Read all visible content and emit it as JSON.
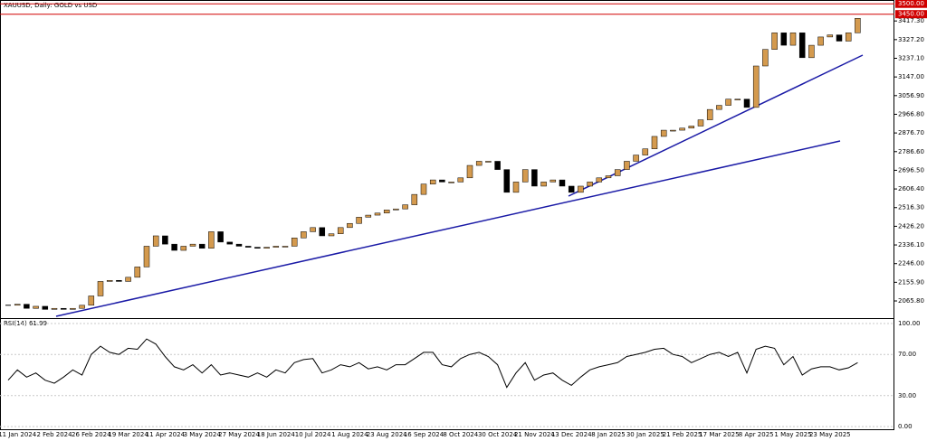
{
  "chart_data": [
    {
      "type": "candlestick",
      "title": "XAUUSD, Daily:  GOLD vs USD",
      "up_color": "#d49a4e",
      "down_color": "#000000",
      "categories": [
        null,
        "11 Jan 2024",
        null,
        null,
        null,
        "2 Feb 2024",
        null,
        null,
        null,
        "26 Feb 2024",
        null,
        null,
        null,
        "19 Mar 2024",
        null,
        null,
        null,
        "11 Apr 2024",
        null,
        null,
        null,
        "3 May 2024",
        null,
        null,
        null,
        "27 May 2024",
        null,
        null,
        null,
        "18 Jun 2024",
        null,
        null,
        null,
        "10 Jul 2024",
        null,
        null,
        null,
        "1 Aug 2024",
        null,
        null,
        null,
        "23 Aug 2024",
        null,
        null,
        null,
        "16 Sep 2024",
        null,
        null,
        null,
        "8 Oct 2024",
        null,
        null,
        null,
        "30 Oct 2024",
        null,
        null,
        null,
        "21 Nov 2024",
        null,
        null,
        null,
        "13 Dec 2024",
        null,
        null,
        null,
        "8 Jan 2025",
        null,
        null,
        null,
        "30 Jan 2025",
        null,
        null,
        null,
        "21 Feb 2025",
        null,
        null,
        null,
        "17 Mar 2025",
        null,
        null,
        null,
        "8 Apr 2025",
        null,
        null,
        null,
        "1 May 2025",
        null,
        null,
        null,
        "23 May 2025",
        null,
        null,
        null
      ],
      "close": [
        2045,
        2050,
        2030,
        2040,
        2025,
        2030,
        2025,
        2030,
        2045,
        2090,
        2160,
        2165,
        2160,
        2180,
        2230,
        2330,
        2380,
        2340,
        2310,
        2330,
        2340,
        2320,
        2400,
        2350,
        2340,
        2330,
        2325,
        2320,
        2325,
        2330,
        2330,
        2370,
        2400,
        2420,
        2380,
        2390,
        2420,
        2440,
        2470,
        2480,
        2490,
        2505,
        2510,
        2530,
        2580,
        2630,
        2650,
        2640,
        2640,
        2660,
        2720,
        2740,
        2740,
        2700,
        2590,
        2640,
        2700,
        2620,
        2640,
        2650,
        2620,
        2590,
        2620,
        2640,
        2660,
        2670,
        2700,
        2740,
        2770,
        2800,
        2860,
        2890,
        2890,
        2900,
        2910,
        2940,
        2990,
        3010,
        3040,
        3040,
        3000,
        3200,
        3280,
        3360,
        3300,
        3360,
        3240,
        3300,
        3340,
        3350,
        3320,
        3360,
        3430
      ],
      "ylim": [
        1983,
        3501
      ],
      "yticks": [
        {
          "value": 2065.8,
          "label": "2065.80"
        },
        {
          "value": 2155.9,
          "label": "2155.90"
        },
        {
          "value": 2246,
          "label": "2246.00"
        },
        {
          "value": 2336.1,
          "label": "2336.10"
        },
        {
          "value": 2426.2,
          "label": "2426.20"
        },
        {
          "value": 2516.3,
          "label": "2516.30"
        },
        {
          "value": 2606.4,
          "label": "2606.40"
        },
        {
          "value": 2696.5,
          "label": "2696.50"
        },
        {
          "value": 2786.6,
          "label": "2786.60"
        },
        {
          "value": 2876.7,
          "label": "2876.70"
        },
        {
          "value": 2966.8,
          "label": "2966.80"
        },
        {
          "value": 3056.9,
          "label": "3056.90"
        },
        {
          "value": 3147,
          "label": "3147.00"
        },
        {
          "value": 3237.1,
          "label": "3237.10"
        },
        {
          "value": 3327.2,
          "label": "3327.20"
        },
        {
          "value": 3417.3,
          "label": "3417.30"
        }
      ],
      "levels": [
        {
          "value": 3500,
          "label": "3500.00"
        },
        {
          "value": 3450,
          "label": "3450.00"
        }
      ],
      "level_color": "#d00000"
    },
    {
      "type": "line",
      "title": "RSI(14) 61.99",
      "color": "#000000",
      "grid": true,
      "values": [
        45,
        55,
        48,
        52,
        45,
        42,
        48,
        55,
        50,
        70,
        78,
        72,
        70,
        76,
        75,
        85,
        80,
        68,
        58,
        55,
        60,
        52,
        60,
        50,
        52,
        50,
        48,
        52,
        48,
        55,
        52,
        62,
        65,
        66,
        52,
        55,
        60,
        58,
        62,
        56,
        58,
        55,
        60,
        60,
        66,
        72,
        72,
        60,
        58,
        66,
        70,
        72,
        68,
        60,
        38,
        52,
        62,
        45,
        50,
        52,
        45,
        40,
        48,
        55,
        58,
        60,
        62,
        68,
        70,
        72,
        75,
        76,
        70,
        68,
        62,
        66,
        70,
        72,
        68,
        72,
        52,
        75,
        78,
        76,
        60,
        68,
        50,
        56,
        58,
        58,
        55,
        57,
        62
      ],
      "ylim": [
        -3.5,
        104.4
      ],
      "yticks": [
        {
          "value": 100,
          "label": "100.00"
        },
        {
          "value": 70,
          "label": "70.00"
        },
        {
          "value": 30,
          "label": "30.00"
        },
        {
          "value": 0,
          "label": "0.00"
        }
      ]
    }
  ]
}
